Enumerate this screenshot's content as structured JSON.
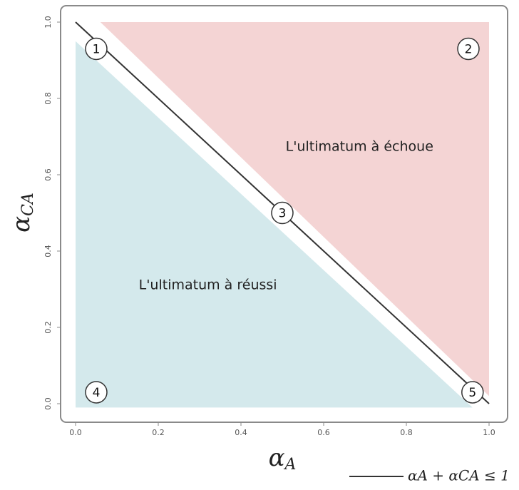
{
  "chart_data": {
    "type": "region",
    "x_label": {
      "symbol": "α",
      "subscript": "A"
    },
    "y_label": {
      "symbol": "α",
      "subscript": "CA"
    },
    "xlim": [
      0,
      1
    ],
    "ylim": [
      0,
      1
    ],
    "xticks": [
      {
        "value": 0,
        "label": "0.0"
      },
      0.2,
      0.4,
      0.6,
      0.8,
      {
        "value": 1,
        "label": "1.0"
      }
    ],
    "yticks": [
      {
        "value": 0,
        "label": "0.0"
      },
      0.2,
      0.4,
      0.6,
      0.8,
      {
        "value": 1,
        "label": "1.0"
      }
    ],
    "regions": [
      {
        "name": "L'ultimatum à échoue",
        "color": "#f4d4d4",
        "x": [
          0.06,
          1,
          1
        ],
        "y": [
          1,
          1,
          0.02
        ]
      },
      {
        "name": "L'ultimatum à réussi",
        "color": "#d4e9ec",
        "x": [
          0,
          0,
          0.96
        ],
        "y": [
          0.95,
          -0.01,
          -0.01
        ]
      }
    ],
    "line": {
      "name": "αA + αCA ≤ 1",
      "color": "#333333",
      "x": [
        0,
        1
      ],
      "y": [
        1,
        0
      ]
    },
    "points": {
      "labels": [
        "1",
        "2",
        "3",
        "4",
        "5"
      ],
      "x": [
        0.05,
        0.95,
        0.5,
        0.05,
        0.96
      ],
      "y": [
        0.93,
        0.93,
        0.5,
        0.03,
        0.03
      ]
    }
  }
}
